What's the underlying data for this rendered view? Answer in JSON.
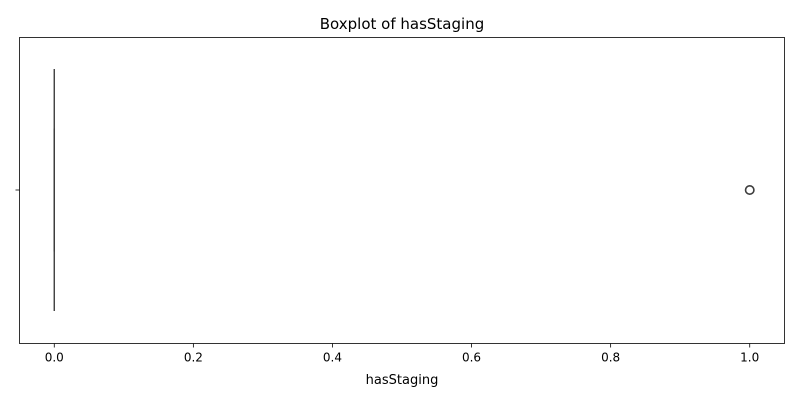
{
  "chart_data": {
    "type": "box",
    "title": "Boxplot of hasStaging",
    "xlabel": "hasStaging",
    "ylabel": "",
    "orientation": "horizontal",
    "xlim": [
      -0.05,
      1.05
    ],
    "xticks": [
      0.0,
      0.2,
      0.4,
      0.6,
      0.8,
      1.0
    ],
    "xtick_labels": [
      "0.0",
      "0.2",
      "0.4",
      "0.6",
      "0.8",
      "1.0"
    ],
    "box": {
      "q1": 0.0,
      "median": 0.0,
      "q3": 0.0,
      "whisker_low": 0.0,
      "whisker_high": 0.0,
      "outliers": [
        1.0
      ]
    },
    "grid": false,
    "box_color": "#1f77b4",
    "line_color": "#3d3d3d"
  }
}
